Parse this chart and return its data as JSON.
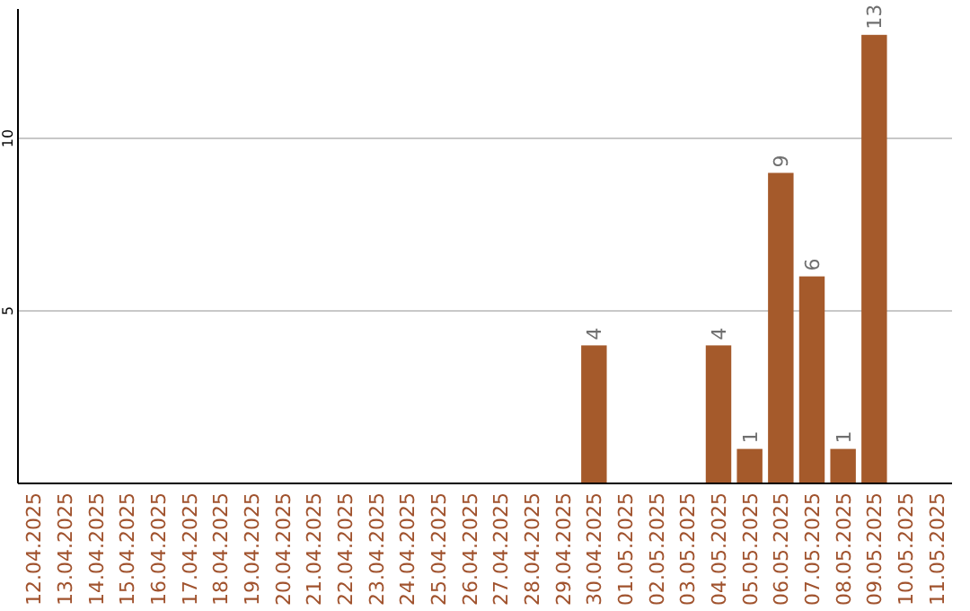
{
  "chart_data": {
    "type": "bar",
    "categories": [
      "12.04.2025",
      "13.04.2025",
      "14.04.2025",
      "15.04.2025",
      "16.04.2025",
      "17.04.2025",
      "18.04.2025",
      "19.04.2025",
      "20.04.2025",
      "21.04.2025",
      "22.04.2025",
      "23.04.2025",
      "24.04.2025",
      "25.04.2025",
      "26.04.2025",
      "27.04.2025",
      "28.04.2025",
      "29.04.2025",
      "30.04.2025",
      "01.05.2025",
      "02.05.2025",
      "03.05.2025",
      "04.05.2025",
      "05.05.2025",
      "06.05.2025",
      "07.05.2025",
      "08.05.2025",
      "09.05.2025",
      "10.05.2025",
      "11.05.2025"
    ],
    "values": [
      0,
      0,
      0,
      0,
      0,
      0,
      0,
      0,
      0,
      0,
      0,
      0,
      0,
      0,
      0,
      0,
      0,
      0,
      4,
      0,
      0,
      0,
      4,
      1,
      9,
      6,
      1,
      13,
      0,
      0
    ],
    "value_labels": [
      null,
      null,
      null,
      null,
      null,
      null,
      null,
      null,
      null,
      null,
      null,
      null,
      null,
      null,
      null,
      null,
      null,
      null,
      "4",
      null,
      null,
      null,
      "4",
      "1",
      "9",
      "6",
      "1",
      "13",
      null,
      null
    ],
    "color": "#a55a2b",
    "ylim": [
      0,
      13.75
    ],
    "yticks": [
      5,
      10
    ],
    "grid": "y"
  }
}
